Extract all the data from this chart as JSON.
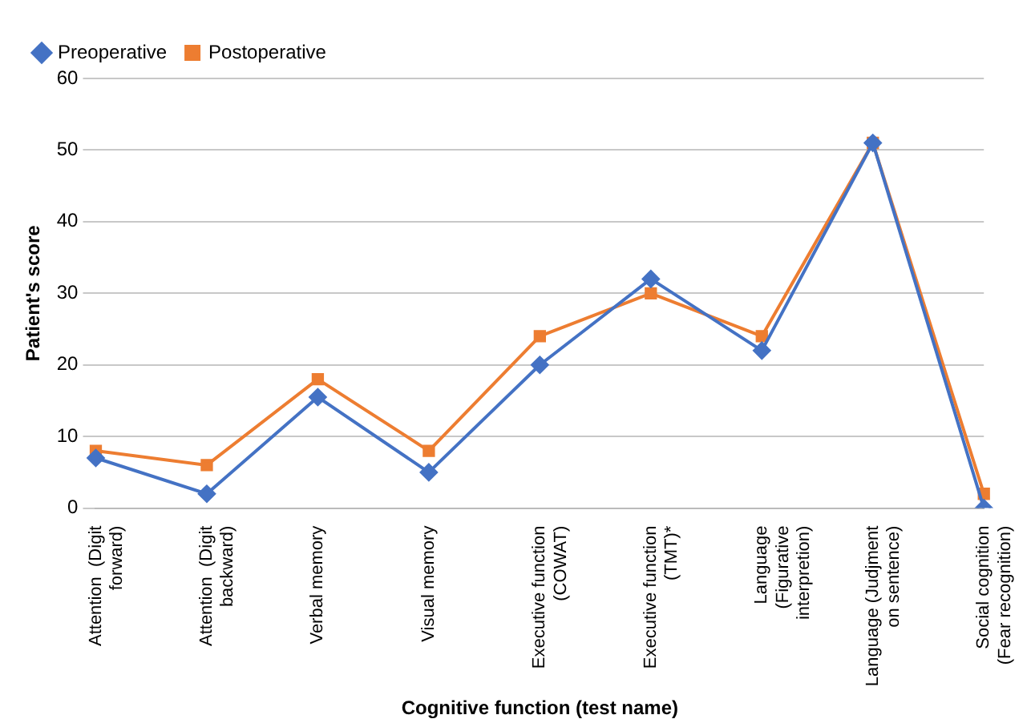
{
  "chart_data": {
    "type": "line",
    "xlabel": "Cognitive function (test name)",
    "ylabel": "Patient's score",
    "categories": [
      "Attention  (Digit forward)",
      "Attention  (Digit backward)",
      "Verbal memory",
      "Visual memory",
      "Executive function (COWAT)",
      "Executive function (TMT)*",
      "Language (Figurative interpretion)",
      "Language (Judjment on sentence)",
      "Social cognition (Fear recognition)"
    ],
    "series": [
      {
        "name": "Preoperative",
        "color": "#4472c4",
        "marker": "diamond",
        "values": [
          7,
          2,
          15.5,
          5,
          20,
          32,
          22,
          51,
          0
        ]
      },
      {
        "name": "Postoperative",
        "color": "#ed7d31",
        "marker": "square",
        "values": [
          8,
          6,
          18,
          8,
          24,
          30,
          24,
          51,
          2
        ]
      }
    ],
    "ylim": [
      0,
      60
    ],
    "yticks": [
      0,
      10,
      20,
      30,
      40,
      50,
      60
    ],
    "grid": "y",
    "legend": "top left",
    "line_style": "solid"
  }
}
